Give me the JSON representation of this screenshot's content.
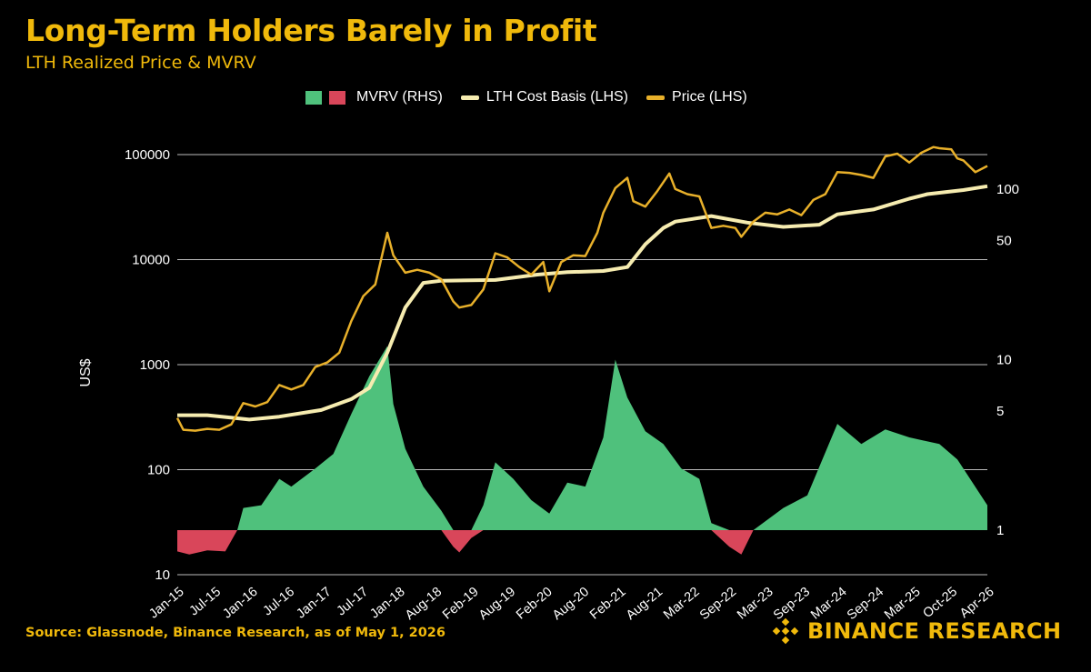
{
  "header": {
    "title": "Long-Term Holders Barely in Profit",
    "subtitle": "LTH Realized Price & MVRV"
  },
  "footer": {
    "source": "Source: Glassnode, Binance Research, as of May 1, 2026",
    "brand": "BINANCE RESEARCH",
    "brand_icon": "binance-diamond-logo"
  },
  "legend": {
    "mvrv": "MVRV (RHS)",
    "lth": "LTH Cost Basis (LHS)",
    "price": "Price (LHS)"
  },
  "colors": {
    "background": "#000000",
    "accent": "#f0b90b",
    "mvrv_positive": "#4fc17c",
    "mvrv_negative": "#d9465a",
    "lth_line": "#f6ecb0",
    "price_line": "#e8b02a",
    "grid": "#bbbbbb"
  },
  "chart_data": {
    "type": "line",
    "y_scale": "log",
    "y2_scale": "log",
    "grid": true,
    "legend_position": "top",
    "ylabel": "US$",
    "ylim": [
      10,
      100000
    ],
    "y_ticks": [
      10,
      100,
      1000,
      10000,
      100000
    ],
    "y2_ticks": [
      1,
      5,
      10,
      50,
      100
    ],
    "y2_baseline": 1,
    "x_ticks": [
      "Jan-15",
      "Jul-15",
      "Jan-16",
      "Jul-16",
      "Jan-17",
      "Jul-17",
      "Jan-18",
      "Aug-18",
      "Feb-19",
      "Aug-19",
      "Feb-20",
      "Aug-20",
      "Feb-21",
      "Aug-21",
      "Mar-22",
      "Sep-22",
      "Mar-23",
      "Sep-23",
      "Mar-24",
      "Sep-24",
      "Mar-25",
      "Oct-25",
      "Apr-26"
    ],
    "x_range": [
      "2015-01",
      "2026-04"
    ],
    "series": [
      {
        "name": "Price (LHS)",
        "points": [
          [
            "2015-01",
            310
          ],
          [
            "2015-02",
            240
          ],
          [
            "2015-04",
            235
          ],
          [
            "2015-06",
            245
          ],
          [
            "2015-08",
            240
          ],
          [
            "2015-10",
            270
          ],
          [
            "2015-12",
            430
          ],
          [
            "2016-02",
            400
          ],
          [
            "2016-04",
            440
          ],
          [
            "2016-06",
            640
          ],
          [
            "2016-08",
            580
          ],
          [
            "2016-10",
            640
          ],
          [
            "2016-12",
            950
          ],
          [
            "2017-02",
            1050
          ],
          [
            "2017-04",
            1300
          ],
          [
            "2017-06",
            2600
          ],
          [
            "2017-08",
            4500
          ],
          [
            "2017-10",
            5800
          ],
          [
            "2017-12",
            18000
          ],
          [
            "2018-01",
            11000
          ],
          [
            "2018-03",
            7500
          ],
          [
            "2018-05",
            8000
          ],
          [
            "2018-07",
            7500
          ],
          [
            "2018-09",
            6500
          ],
          [
            "2018-11",
            4000
          ],
          [
            "2018-12",
            3500
          ],
          [
            "2019-02",
            3700
          ],
          [
            "2019-04",
            5200
          ],
          [
            "2019-06",
            11500
          ],
          [
            "2019-08",
            10500
          ],
          [
            "2019-10",
            8500
          ],
          [
            "2019-12",
            7200
          ],
          [
            "2020-02",
            9500
          ],
          [
            "2020-03",
            5000
          ],
          [
            "2020-05",
            9500
          ],
          [
            "2020-07",
            11000
          ],
          [
            "2020-09",
            10800
          ],
          [
            "2020-11",
            18000
          ],
          [
            "2020-12",
            28000
          ],
          [
            "2021-02",
            48000
          ],
          [
            "2021-04",
            60000
          ],
          [
            "2021-05",
            36000
          ],
          [
            "2021-07",
            32000
          ],
          [
            "2021-09",
            45000
          ],
          [
            "2021-11",
            66000
          ],
          [
            "2021-12",
            47000
          ],
          [
            "2022-02",
            42000
          ],
          [
            "2022-04",
            40000
          ],
          [
            "2022-06",
            20000
          ],
          [
            "2022-08",
            21000
          ],
          [
            "2022-10",
            20000
          ],
          [
            "2022-11",
            16500
          ],
          [
            "2023-01",
            23000
          ],
          [
            "2023-03",
            28000
          ],
          [
            "2023-05",
            27000
          ],
          [
            "2023-07",
            30000
          ],
          [
            "2023-09",
            26500
          ],
          [
            "2023-11",
            37000
          ],
          [
            "2024-01",
            42000
          ],
          [
            "2024-03",
            68000
          ],
          [
            "2024-05",
            67000
          ],
          [
            "2024-07",
            64000
          ],
          [
            "2024-09",
            60000
          ],
          [
            "2024-11",
            96000
          ],
          [
            "2025-01",
            102000
          ],
          [
            "2025-03",
            84000
          ],
          [
            "2025-05",
            104000
          ],
          [
            "2025-07",
            118000
          ],
          [
            "2025-08",
            115000
          ],
          [
            "2025-10",
            112000
          ],
          [
            "2025-11",
            92000
          ],
          [
            "2025-12",
            88000
          ],
          [
            "2026-02",
            68000
          ],
          [
            "2026-04",
            78000
          ]
        ]
      },
      {
        "name": "LTH Cost Basis (LHS)",
        "points": [
          [
            "2015-01",
            330
          ],
          [
            "2015-06",
            330
          ],
          [
            "2016-01",
            300
          ],
          [
            "2016-06",
            320
          ],
          [
            "2017-01",
            370
          ],
          [
            "2017-06",
            470
          ],
          [
            "2017-09",
            600
          ],
          [
            "2017-12",
            1300
          ],
          [
            "2018-03",
            3500
          ],
          [
            "2018-06",
            6000
          ],
          [
            "2018-09",
            6300
          ],
          [
            "2019-06",
            6400
          ],
          [
            "2020-01",
            7200
          ],
          [
            "2020-06",
            7600
          ],
          [
            "2020-12",
            7800
          ],
          [
            "2021-04",
            8500
          ],
          [
            "2021-07",
            14000
          ],
          [
            "2021-10",
            20000
          ],
          [
            "2021-12",
            23000
          ],
          [
            "2022-06",
            26000
          ],
          [
            "2022-12",
            22500
          ],
          [
            "2023-06",
            20500
          ],
          [
            "2023-12",
            21500
          ],
          [
            "2024-03",
            27000
          ],
          [
            "2024-09",
            30000
          ],
          [
            "2025-03",
            38000
          ],
          [
            "2025-06",
            42000
          ],
          [
            "2025-12",
            46000
          ],
          [
            "2026-04",
            50000
          ]
        ]
      },
      {
        "name": "MVRV (RHS)",
        "points": [
          [
            "2015-01",
            0.75
          ],
          [
            "2015-03",
            0.72
          ],
          [
            "2015-06",
            0.76
          ],
          [
            "2015-09",
            0.75
          ],
          [
            "2015-11",
            1.0
          ],
          [
            "2015-12",
            1.35
          ],
          [
            "2016-03",
            1.4
          ],
          [
            "2016-06",
            2.0
          ],
          [
            "2016-08",
            1.8
          ],
          [
            "2016-12",
            2.3
          ],
          [
            "2017-03",
            2.8
          ],
          [
            "2017-06",
            4.8
          ],
          [
            "2017-09",
            8.0
          ],
          [
            "2017-12",
            12.0
          ],
          [
            "2018-01",
            5.5
          ],
          [
            "2018-03",
            3.0
          ],
          [
            "2018-06",
            1.8
          ],
          [
            "2018-09",
            1.3
          ],
          [
            "2018-11",
            0.8
          ],
          [
            "2018-12",
            0.74
          ],
          [
            "2019-02",
            0.9
          ],
          [
            "2019-04",
            1.4
          ],
          [
            "2019-06",
            2.5
          ],
          [
            "2019-09",
            2.0
          ],
          [
            "2019-12",
            1.5
          ],
          [
            "2020-03",
            1.25
          ],
          [
            "2020-06",
            1.9
          ],
          [
            "2020-09",
            1.8
          ],
          [
            "2020-12",
            3.5
          ],
          [
            "2021-02",
            10.0
          ],
          [
            "2021-04",
            6.0
          ],
          [
            "2021-07",
            3.8
          ],
          [
            "2021-10",
            3.2
          ],
          [
            "2022-01",
            2.3
          ],
          [
            "2022-04",
            2.0
          ],
          [
            "2022-06",
            1.1
          ],
          [
            "2022-09",
            0.8
          ],
          [
            "2022-11",
            0.72
          ],
          [
            "2023-01",
            1.0
          ],
          [
            "2023-06",
            1.35
          ],
          [
            "2023-10",
            1.6
          ],
          [
            "2024-03",
            4.2
          ],
          [
            "2024-07",
            3.2
          ],
          [
            "2024-11",
            3.9
          ],
          [
            "2025-03",
            3.5
          ],
          [
            "2025-08",
            3.2
          ],
          [
            "2025-11",
            2.6
          ],
          [
            "2026-04",
            1.4
          ]
        ]
      }
    ]
  }
}
